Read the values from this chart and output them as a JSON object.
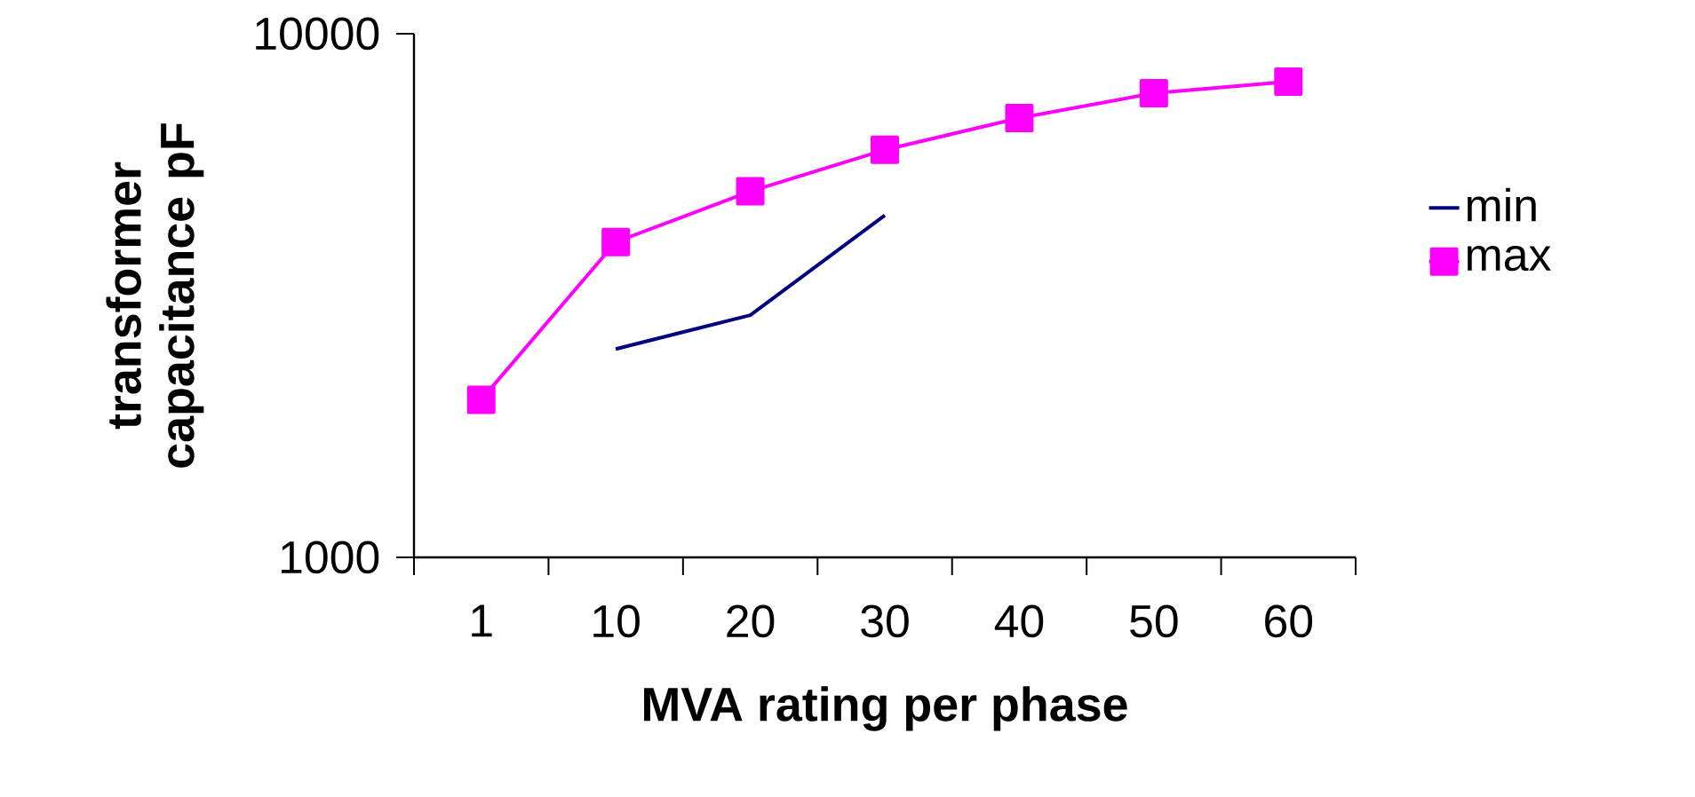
{
  "chart_data": {
    "type": "line",
    "xlabel": "MVA rating per phase",
    "ylabel": "transformer capacitance pF",
    "categories": [
      "1",
      "10",
      "20",
      "30",
      "40",
      "50",
      "60"
    ],
    "log": "y",
    "ylim": [
      1000,
      10000
    ],
    "yticks": [
      1000,
      10000
    ],
    "grid": false,
    "legend": "right",
    "series": [
      {
        "name": "min",
        "color": "#000080",
        "marker": "none",
        "values": [
          null,
          2500,
          2900,
          4500,
          null,
          null,
          null
        ]
      },
      {
        "name": "max",
        "color": "#ff00ff",
        "marker": "square",
        "values": [
          2000,
          4000,
          5000,
          6000,
          6900,
          7700,
          8100
        ]
      }
    ]
  }
}
